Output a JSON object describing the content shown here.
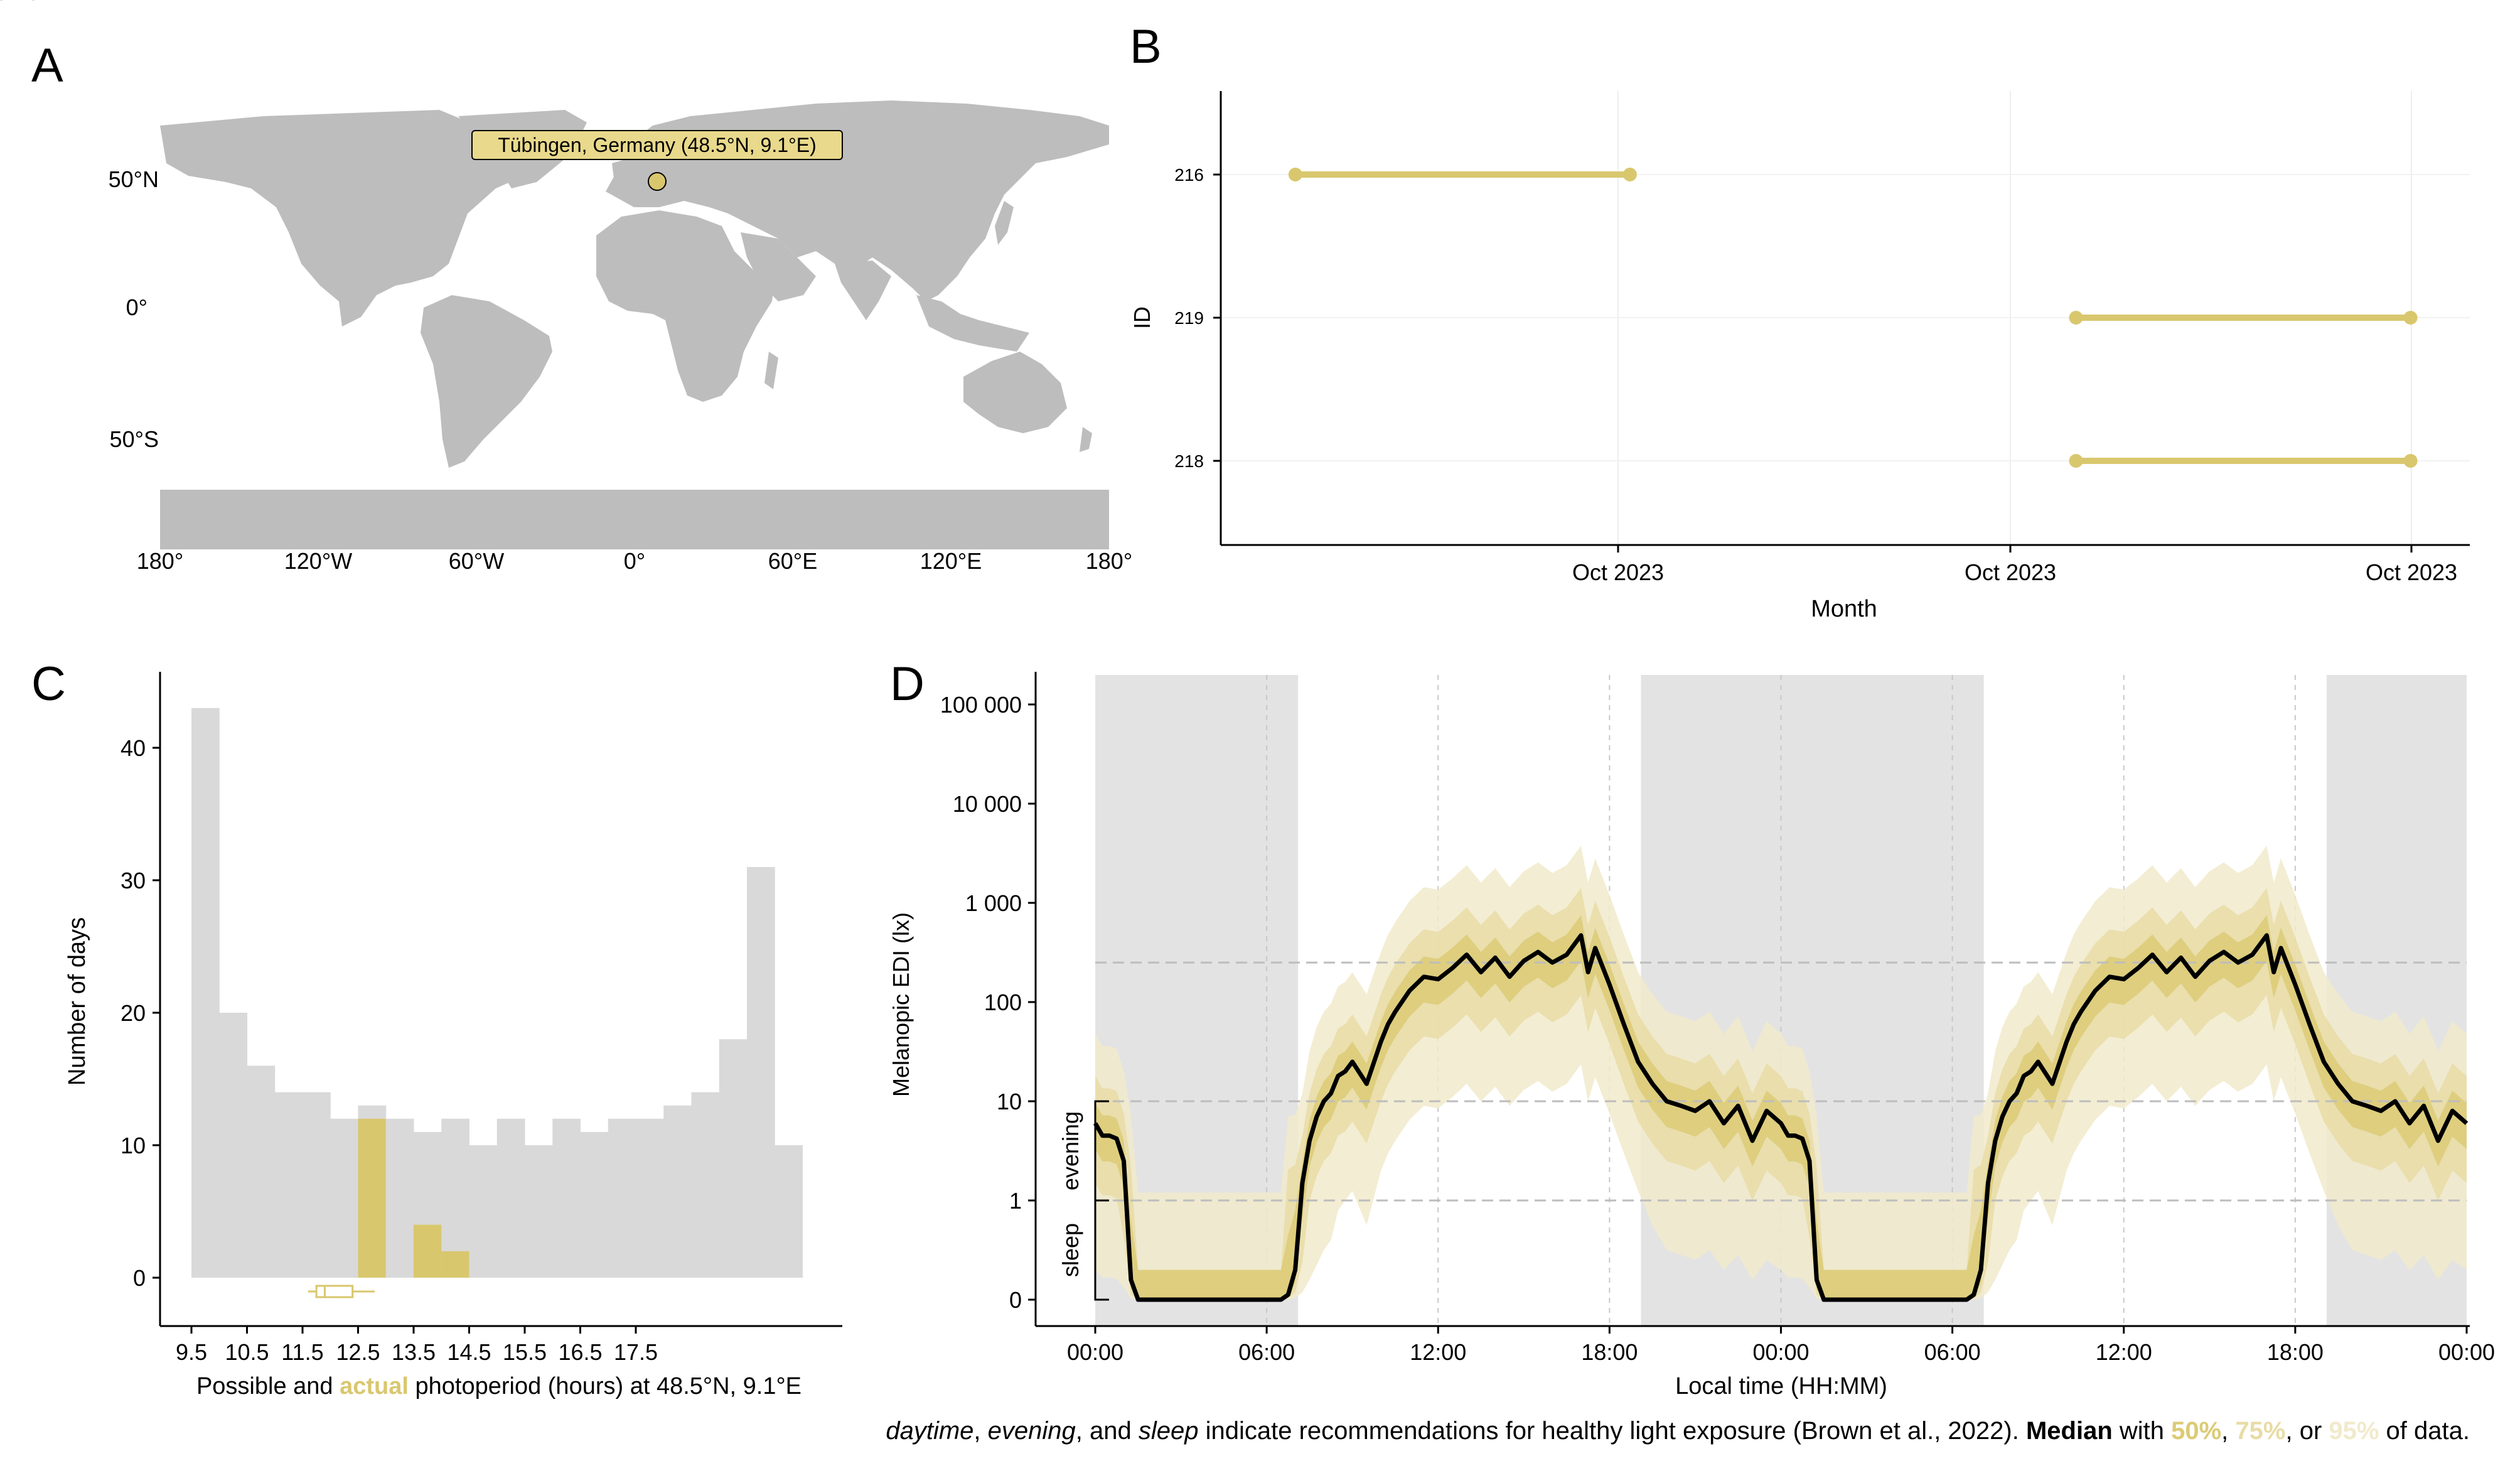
{
  "colors": {
    "gold": "#d9c76e",
    "gold50": "#dccb75",
    "gold75": "#e8dca6",
    "gold95": "#f1eacb",
    "land": "#bdbdbd",
    "hist_all": "#d9d9d9",
    "night_shade": "#e3e3e3",
    "axis": "#000000",
    "grid": "#eeeeee",
    "refline": "#bdbdbd"
  },
  "panel_labels": [
    "A",
    "B",
    "C",
    "D"
  ],
  "chart_data": [
    {
      "panel": "A",
      "type": "map",
      "lat_ticks": [
        "50°N",
        "0°",
        "50°S"
      ],
      "lon_ticks": [
        "180°",
        "120°W",
        "60°W",
        "0°",
        "60°E",
        "120°E",
        "180°"
      ],
      "location": {
        "label": "Tübingen, Germany (48.5°N, 9.1°E)",
        "lat": 48.5,
        "lon": 9.1
      }
    },
    {
      "panel": "B",
      "type": "range",
      "xlabel": "Month",
      "ylabel": "ID",
      "x_tick_labels": [
        "Oct 2023",
        "Oct 2023",
        "Oct 2023"
      ],
      "categories": [
        "216",
        "219",
        "218"
      ],
      "ranges": [
        {
          "id": "216",
          "start": 0.05,
          "end": 0.35
        },
        {
          "id": "219",
          "start": 0.75,
          "end": 1.05
        },
        {
          "id": "218",
          "start": 0.75,
          "end": 1.05
        }
      ]
    },
    {
      "panel": "C",
      "type": "bar",
      "ylabel": "Number of days",
      "xlabel_parts": [
        "Possible and ",
        "actual",
        " photoperiod (hours) at 48.5°N, 9.1°E"
      ],
      "x_ticks": [
        "9.5",
        "10.5",
        "11.5",
        "12.5",
        "13.5",
        "14.5",
        "15.5",
        "16.5",
        "17.5"
      ],
      "y_ticks": [
        "0",
        "10",
        "20",
        "30",
        "40"
      ],
      "ylim": [
        0,
        45
      ],
      "bin_start": 9.5,
      "bin_width": 0.5,
      "possible": [
        43,
        20,
        16,
        14,
        14,
        12,
        13,
        12,
        11,
        12,
        10,
        12,
        10,
        12,
        11,
        12,
        12,
        13,
        14,
        18,
        31,
        10
      ],
      "actual": [
        0,
        0,
        0,
        0,
        0,
        0,
        12,
        0,
        4,
        2,
        0,
        0,
        0,
        0,
        0,
        0,
        0,
        0,
        0,
        0,
        0,
        0
      ],
      "boxplot": {
        "min": 11.6,
        "q1": 11.75,
        "median": 11.9,
        "q3": 12.4,
        "max": 12.8
      }
    },
    {
      "panel": "D",
      "type": "line",
      "xlabel": "Local time (HH:MM)",
      "ylabel": "Melanopic EDI (lx)",
      "x_tick_labels": [
        "00:00",
        "06:00",
        "12:00",
        "18:00",
        "00:00",
        "06:00",
        "12:00",
        "18:00",
        "00:00"
      ],
      "y_tick_labels": [
        "0",
        "1",
        "10",
        "100",
        "1 000",
        "10 000",
        "100 000"
      ],
      "y_scale": "symlog",
      "xlim_hours": [
        0,
        48
      ],
      "night_shading_hours": [
        [
          0,
          7.1
        ],
        [
          19.1,
          31.1
        ],
        [
          43.1,
          48
        ]
      ],
      "reference_lines_lux": [
        250,
        10,
        1
      ],
      "recommendations": [
        {
          "label": "daytime",
          "from": 250,
          "to": 100000
        },
        {
          "label": "evening",
          "from": 1,
          "to": 10
        },
        {
          "label": "sleep",
          "from": 0,
          "to": 1
        }
      ],
      "median_profile_hours": [
        0,
        0.25,
        0.5,
        0.75,
        1.0,
        1.25,
        1.5,
        2,
        3,
        4,
        5,
        6,
        6.5,
        6.75,
        7.0,
        7.25,
        7.5,
        7.75,
        8.0,
        8.25,
        8.5,
        8.75,
        9,
        9.5,
        10,
        10.25,
        10.5,
        11,
        11.5,
        12,
        12.5,
        13,
        13.5,
        14,
        14.5,
        15,
        15.5,
        16,
        16.5,
        17,
        17.25,
        17.5,
        18,
        18.5,
        19,
        19.5,
        20,
        20.5,
        21,
        21.5,
        22,
        22.5,
        23,
        23.5,
        24
      ],
      "median_profile_lux": [
        6,
        4.5,
        4.5,
        4.2,
        2.5,
        0.2,
        0,
        0,
        0,
        0,
        0,
        0,
        0,
        0.05,
        0.3,
        1.5,
        4,
        7,
        10,
        12,
        18,
        20,
        25,
        15,
        40,
        60,
        80,
        130,
        180,
        170,
        220,
        300,
        200,
        280,
        180,
        260,
        320,
        250,
        300,
        470,
        200,
        350,
        150,
        60,
        25,
        15,
        10,
        9,
        8,
        10,
        6,
        9,
        4,
        8,
        6
      ]
    }
  ],
  "caption_parts": [
    {
      "text": "daytime",
      "style": "italic"
    },
    {
      "text": ", ",
      "style": "normal"
    },
    {
      "text": "evening",
      "style": "italic"
    },
    {
      "text": ", and ",
      "style": "normal"
    },
    {
      "text": "sleep",
      "style": "italic"
    },
    {
      "text": " indicate recommendations for healthy light exposure (Brown et al., 2022). ",
      "style": "normal"
    },
    {
      "text": "Median",
      "style": "bold"
    },
    {
      "text": " with ",
      "style": "normal"
    },
    {
      "text": "50%",
      "style": "gold50"
    },
    {
      "text": ", ",
      "style": "normal"
    },
    {
      "text": "75%",
      "style": "gold75"
    },
    {
      "text": ", or ",
      "style": "normal"
    },
    {
      "text": "95%",
      "style": "gold95"
    },
    {
      "text": " of data.",
      "style": "normal"
    }
  ]
}
